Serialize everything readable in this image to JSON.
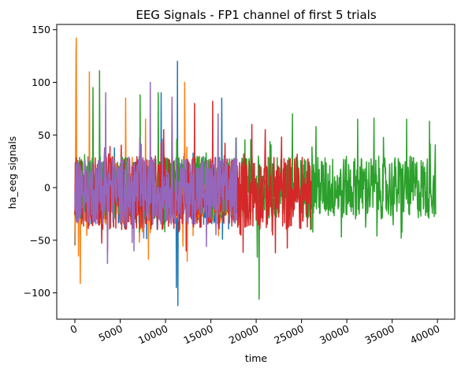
{
  "chart_data": {
    "type": "line",
    "title": "EEG Signals - FP1 channel of first 5 trials",
    "xlabel": "time",
    "ylabel": "ha_eeg signals",
    "xlim": [
      -2000,
      41900
    ],
    "ylim": [
      -125,
      155
    ],
    "x_ticks": [
      0,
      5000,
      10000,
      15000,
      20000,
      25000,
      30000,
      35000,
      40000
    ],
    "x_tick_labels": [
      "0",
      "5000",
      "10000",
      "15000",
      "20000",
      "25000",
      "30000",
      "35000",
      "40000"
    ],
    "y_ticks": [
      -100,
      -50,
      0,
      50,
      100,
      150
    ],
    "y_tick_labels": [
      "−100",
      "−50",
      "0",
      "50",
      "100",
      "150"
    ],
    "grid": false,
    "legend": "none",
    "x_tick_rotation_deg": 25,
    "series": [
      {
        "color": "#1f77b4",
        "x_start": 0,
        "x_end": 18000,
        "typical_range": [
          -35,
          25
        ],
        "peaks": [
          [
            11300,
            120
          ],
          [
            11350,
            -112
          ],
          [
            11200,
            -95
          ],
          [
            9500,
            90
          ],
          [
            16200,
            85
          ],
          [
            0,
            -55
          ]
        ]
      },
      {
        "color": "#ff7f0e",
        "x_start": 0,
        "x_end": 18000,
        "typical_range": [
          -35,
          25
        ],
        "peaks": [
          [
            150,
            142
          ],
          [
            100,
            125
          ],
          [
            600,
            -91
          ],
          [
            1600,
            110
          ],
          [
            400,
            -65
          ],
          [
            8100,
            -68
          ],
          [
            12400,
            -70
          ],
          [
            12100,
            100
          ],
          [
            5600,
            85
          ],
          [
            7800,
            65
          ]
        ]
      },
      {
        "color": "#2ca02c",
        "x_start": 0,
        "x_end": 39800,
        "typical_range": [
          -30,
          30
        ],
        "peaks": [
          [
            2700,
            111
          ],
          [
            2000,
            95
          ],
          [
            20300,
            -106
          ],
          [
            20100,
            -66
          ],
          [
            9200,
            90
          ],
          [
            7200,
            88
          ],
          [
            24000,
            70
          ],
          [
            26600,
            58
          ],
          [
            31200,
            65
          ],
          [
            33000,
            66
          ],
          [
            36600,
            65
          ],
          [
            39100,
            63
          ],
          [
            26000,
            -40
          ],
          [
            29400,
            -47
          ],
          [
            33300,
            -46
          ],
          [
            36000,
            -48
          ]
        ]
      },
      {
        "color": "#d62728",
        "x_start": 0,
        "x_end": 26100,
        "typical_range": [
          -40,
          30
        ],
        "peaks": [
          [
            13200,
            80
          ],
          [
            15200,
            82
          ],
          [
            19500,
            60
          ],
          [
            21000,
            55
          ],
          [
            22800,
            48
          ],
          [
            18200,
            -44
          ],
          [
            21800,
            -45
          ],
          [
            9800,
            55
          ]
        ]
      },
      {
        "color": "#9467bd",
        "x_start": 0,
        "x_end": 17900,
        "typical_range": [
          -35,
          30
        ],
        "peaks": [
          [
            8300,
            100
          ],
          [
            3400,
            90
          ],
          [
            10700,
            86
          ],
          [
            15800,
            70
          ],
          [
            3600,
            -72
          ],
          [
            6500,
            -60
          ],
          [
            14500,
            -56
          ]
        ]
      }
    ]
  }
}
